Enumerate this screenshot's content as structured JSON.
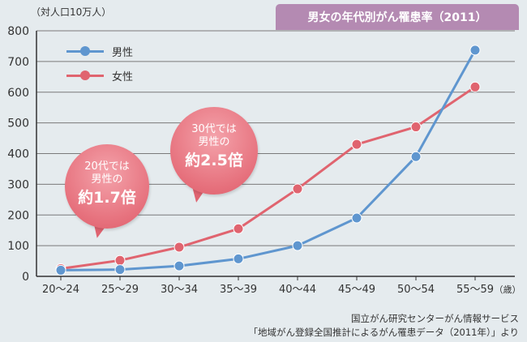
{
  "unit_label": "（対人口10万人）",
  "title": "男女の年代別がん罹患率（2011）",
  "axis_unit": "（歳）",
  "bubbles": [
    {
      "line1": "20代では",
      "line2": "男性の",
      "line3": "約1.7倍"
    },
    {
      "line1": "30代では",
      "line2": "男性の",
      "line3": "約2.5倍"
    }
  ],
  "source": {
    "line1": "国立がん研究センターがん情報サービス",
    "line2": "「地域がん登録全国推計によるがん罹患データ（2011年）」より"
  },
  "chart_data": {
    "type": "line",
    "title": "男女の年代別がん罹患率（2011）",
    "ylabel": "（対人口10万人）",
    "xlabel": "（歳）",
    "ylim": [
      0,
      800
    ],
    "yticks": [
      0,
      100,
      200,
      300,
      400,
      500,
      600,
      700,
      800
    ],
    "grid": true,
    "legend_position": "top-left",
    "categories": [
      "20～24",
      "25～29",
      "30～34",
      "35～39",
      "40～44",
      "45～49",
      "50～54",
      "55～59"
    ],
    "series": [
      {
        "name": "男性",
        "color": "#5f96cf",
        "values": [
          20,
          22,
          34,
          57,
          100,
          190,
          390,
          737
        ]
      },
      {
        "name": "女性",
        "color": "#e0646f",
        "values": [
          25,
          52,
          95,
          155,
          285,
          430,
          487,
          617
        ]
      }
    ]
  }
}
